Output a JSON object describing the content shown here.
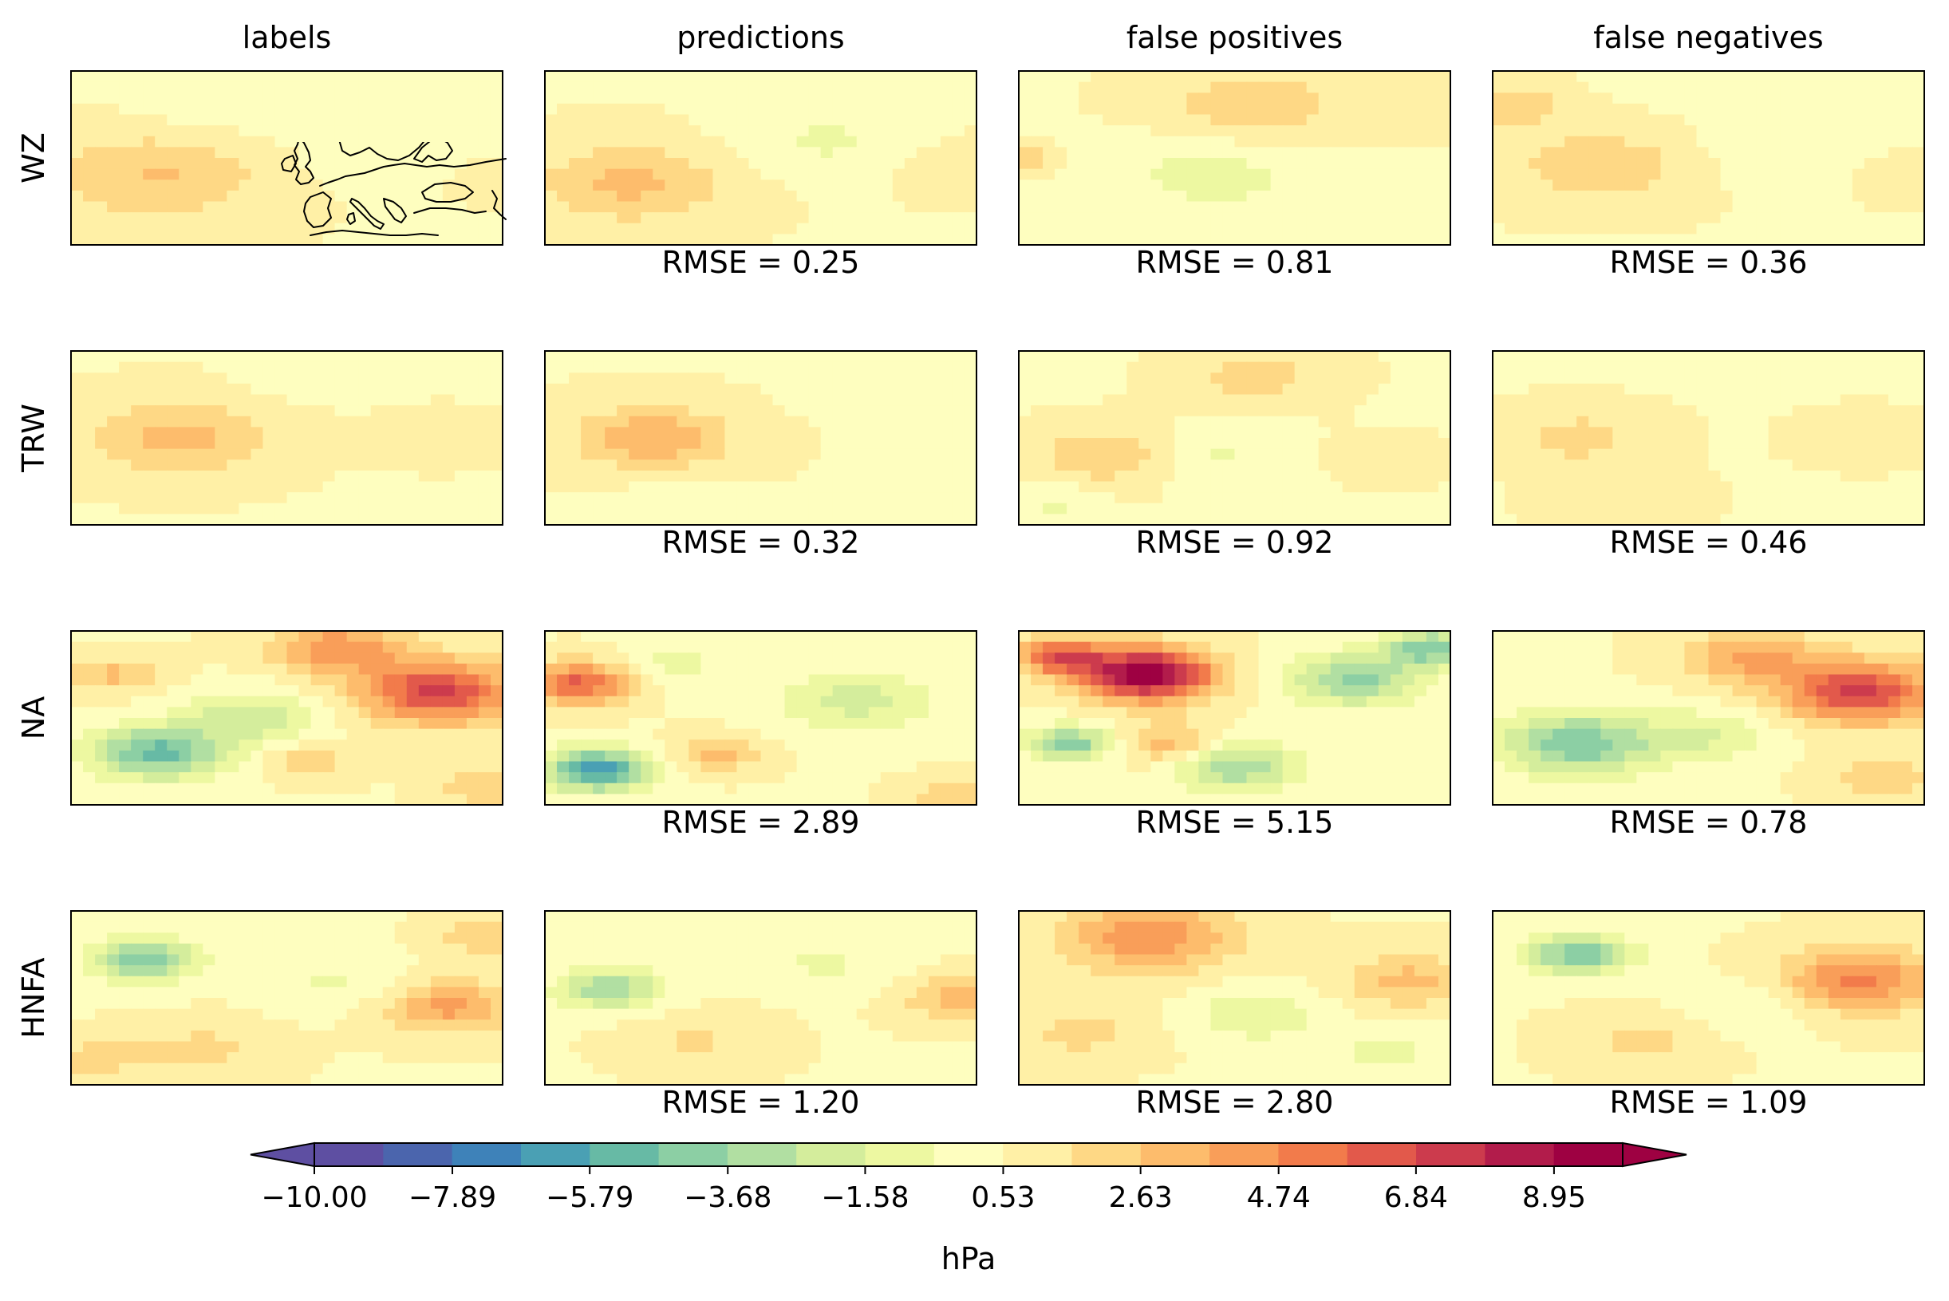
{
  "chart_data": {
    "type": "heatmap",
    "columns": [
      "labels",
      "predictions",
      "false positives",
      "false negatives"
    ],
    "rows": [
      "WZ",
      "TRW",
      "NA",
      "HNFA"
    ],
    "rmse": [
      [
        "",
        "RMSE = 0.25",
        "RMSE = 0.81",
        "RMSE = 0.36"
      ],
      [
        "",
        "RMSE = 0.32",
        "RMSE = 0.92",
        "RMSE = 0.46"
      ],
      [
        "",
        "RMSE = 2.89",
        "RMSE = 5.15",
        "RMSE = 0.78"
      ],
      [
        "",
        "RMSE = 1.20",
        "RMSE = 2.80",
        "RMSE = 1.09"
      ]
    ],
    "colorbar": {
      "label": "hPa",
      "ticks": [
        "−10.00",
        "−7.89",
        "−5.79",
        "−3.68",
        "−1.58",
        "0.53",
        "2.63",
        "4.74",
        "6.84",
        "8.95"
      ],
      "tick_values": [
        -10.0,
        -7.89,
        -5.79,
        -3.68,
        -1.58,
        0.53,
        2.63,
        4.74,
        6.84,
        8.95
      ],
      "levels_min": -10.0,
      "levels_max": 10.0,
      "n_levels": 19,
      "extend": "both",
      "colors": [
        "#5e4fa2",
        "#4b65ad",
        "#3e82b9",
        "#4aa0b4",
        "#67baa5",
        "#8ccfa4",
        "#b1dfa2",
        "#d4ed9c",
        "#edf8a1",
        "#fefebf",
        "#fff0a6",
        "#fed885",
        "#fdbc6c",
        "#f99e59",
        "#f27b4b",
        "#e2594b",
        "#cc3b4d",
        "#b21c4b",
        "#9e0142"
      ],
      "under_color": "#5e4fa2",
      "over_color": "#9e0142"
    },
    "fields": [
      [
        [
          {
            "x": 0.2,
            "y": 0.6,
            "s": 0.25,
            "a": 2.2
          },
          {
            "x": 0.75,
            "y": 0.45,
            "s": 0.2,
            "a": -1.0
          },
          {
            "x": 0.35,
            "y": 0.2,
            "s": 0.2,
            "a": -0.7
          },
          {
            "x": 0.95,
            "y": 0.6,
            "s": 0.12,
            "a": 0.6
          }
        ],
        [
          {
            "x": 0.2,
            "y": 0.65,
            "s": 0.22,
            "a": 2.4
          },
          {
            "x": 0.65,
            "y": 0.4,
            "s": 0.2,
            "a": -1.2
          },
          {
            "x": 0.95,
            "y": 0.55,
            "s": 0.15,
            "a": 0.7
          }
        ],
        [
          {
            "x": 0.55,
            "y": 0.2,
            "s": 0.2,
            "a": 2.0
          },
          {
            "x": 0.03,
            "y": 0.5,
            "s": 0.06,
            "a": 1.8
          },
          {
            "x": 0.45,
            "y": 0.6,
            "s": 0.22,
            "a": -1.5
          },
          {
            "x": 0.8,
            "y": 0.85,
            "s": 0.15,
            "a": -0.8
          },
          {
            "x": 0.95,
            "y": 0.2,
            "s": 0.12,
            "a": 0.8
          }
        ],
        [
          {
            "x": 0.25,
            "y": 0.55,
            "s": 0.2,
            "a": 2.0
          },
          {
            "x": 0.05,
            "y": 0.2,
            "s": 0.12,
            "a": 2.0
          },
          {
            "x": 0.7,
            "y": 0.45,
            "s": 0.2,
            "a": -0.9
          },
          {
            "x": 0.4,
            "y": 0.05,
            "s": 0.12,
            "a": -0.6
          },
          {
            "x": 0.95,
            "y": 0.6,
            "s": 0.12,
            "a": 0.9
          }
        ]
      ],
      [
        [
          {
            "x": 0.25,
            "y": 0.5,
            "s": 0.2,
            "a": 2.6
          },
          {
            "x": 0.55,
            "y": 0.15,
            "s": 0.12,
            "a": -0.6
          },
          {
            "x": 0.85,
            "y": 0.5,
            "s": 0.12,
            "a": 0.8
          }
        ],
        [
          {
            "x": 0.25,
            "y": 0.5,
            "s": 0.18,
            "a": 3.0
          },
          {
            "x": 0.7,
            "y": 0.2,
            "s": 0.12,
            "a": -0.5
          },
          {
            "x": 0.3,
            "y": 0.85,
            "s": 0.12,
            "a": -0.7
          }
        ],
        [
          {
            "x": 0.2,
            "y": 0.6,
            "s": 0.15,
            "a": 2.2
          },
          {
            "x": 0.55,
            "y": 0.15,
            "s": 0.15,
            "a": 1.6
          },
          {
            "x": 0.45,
            "y": 0.6,
            "s": 0.15,
            "a": -1.2
          },
          {
            "x": 0.08,
            "y": 0.88,
            "s": 0.1,
            "a": -1.2
          },
          {
            "x": 0.85,
            "y": 0.6,
            "s": 0.12,
            "a": 0.6
          },
          {
            "x": 0.92,
            "y": 0.35,
            "s": 0.08,
            "a": -0.6
          }
        ],
        [
          {
            "x": 0.2,
            "y": 0.5,
            "s": 0.15,
            "a": 1.6
          },
          {
            "x": 0.3,
            "y": 0.85,
            "s": 0.15,
            "a": 0.6
          },
          {
            "x": 0.85,
            "y": 0.5,
            "s": 0.12,
            "a": 0.9
          }
        ]
      ],
      [
        [
          {
            "x": 0.2,
            "y": 0.7,
            "s": 0.15,
            "a": -5.6
          },
          {
            "x": 0.42,
            "y": 0.5,
            "s": 0.15,
            "a": -3.0
          },
          {
            "x": 0.85,
            "y": 0.35,
            "s": 0.18,
            "a": 6.5
          },
          {
            "x": 0.62,
            "y": 0.1,
            "s": 0.15,
            "a": 4.0
          },
          {
            "x": 0.1,
            "y": 0.25,
            "s": 0.1,
            "a": 2.5
          },
          {
            "x": 0.55,
            "y": 0.75,
            "s": 0.1,
            "a": 1.8
          },
          {
            "x": 0.95,
            "y": 0.9,
            "s": 0.1,
            "a": 2.0
          }
        ],
        [
          {
            "x": 0.12,
            "y": 0.8,
            "s": 0.12,
            "a": -7.0
          },
          {
            "x": 0.08,
            "y": 0.3,
            "s": 0.12,
            "a": 5.5
          },
          {
            "x": 0.72,
            "y": 0.4,
            "s": 0.18,
            "a": -2.5
          },
          {
            "x": 0.4,
            "y": 0.7,
            "s": 0.1,
            "a": 2.5
          },
          {
            "x": 0.3,
            "y": 0.2,
            "s": 0.12,
            "a": -1.5
          },
          {
            "x": 0.95,
            "y": 0.95,
            "s": 0.1,
            "a": 2.0
          }
        ],
        [
          {
            "x": 0.3,
            "y": 0.25,
            "s": 0.15,
            "a": 9.5
          },
          {
            "x": 0.1,
            "y": 0.15,
            "s": 0.1,
            "a": 6.0
          },
          {
            "x": 0.78,
            "y": 0.28,
            "s": 0.15,
            "a": -4.5
          },
          {
            "x": 0.95,
            "y": 0.1,
            "s": 0.1,
            "a": -5.0
          },
          {
            "x": 0.12,
            "y": 0.65,
            "s": 0.1,
            "a": -5.0
          },
          {
            "x": 0.5,
            "y": 0.78,
            "s": 0.15,
            "a": -4.0
          },
          {
            "x": 0.35,
            "y": 0.65,
            "s": 0.12,
            "a": 3.0
          }
        ],
        [
          {
            "x": 0.2,
            "y": 0.65,
            "s": 0.18,
            "a": -5.0
          },
          {
            "x": 0.85,
            "y": 0.35,
            "s": 0.18,
            "a": 6.5
          },
          {
            "x": 0.6,
            "y": 0.15,
            "s": 0.15,
            "a": 3.5
          },
          {
            "x": 0.5,
            "y": 0.6,
            "s": 0.15,
            "a": -2.0
          },
          {
            "x": 0.9,
            "y": 0.85,
            "s": 0.12,
            "a": 2.0
          }
        ]
      ],
      [
        [
          {
            "x": 0.17,
            "y": 0.28,
            "s": 0.12,
            "a": -5.0
          },
          {
            "x": 0.88,
            "y": 0.55,
            "s": 0.15,
            "a": 3.5
          },
          {
            "x": 0.62,
            "y": 0.4,
            "s": 0.15,
            "a": -1.2
          },
          {
            "x": 0.3,
            "y": 0.8,
            "s": 0.15,
            "a": 1.5
          },
          {
            "x": 0.05,
            "y": 0.85,
            "s": 0.12,
            "a": 1.5
          },
          {
            "x": 0.95,
            "y": 0.15,
            "s": 0.1,
            "a": 2.0
          }
        ],
        [
          {
            "x": 0.15,
            "y": 0.45,
            "s": 0.12,
            "a": -4.0
          },
          {
            "x": 0.65,
            "y": 0.3,
            "s": 0.15,
            "a": -1.2
          },
          {
            "x": 0.95,
            "y": 0.5,
            "s": 0.12,
            "a": 2.5
          },
          {
            "x": 0.35,
            "y": 0.75,
            "s": 0.15,
            "a": 1.2
          }
        ],
        [
          {
            "x": 0.3,
            "y": 0.15,
            "s": 0.2,
            "a": 4.0
          },
          {
            "x": 0.55,
            "y": 0.6,
            "s": 0.15,
            "a": -2.0
          },
          {
            "x": 0.85,
            "y": 0.8,
            "s": 0.12,
            "a": -1.5
          },
          {
            "x": 0.9,
            "y": 0.4,
            "s": 0.15,
            "a": 2.5
          },
          {
            "x": 0.15,
            "y": 0.7,
            "s": 0.15,
            "a": 1.5
          }
        ],
        [
          {
            "x": 0.2,
            "y": 0.25,
            "s": 0.12,
            "a": -5.0
          },
          {
            "x": 0.85,
            "y": 0.4,
            "s": 0.18,
            "a": 4.5
          },
          {
            "x": 0.6,
            "y": 0.55,
            "s": 0.15,
            "a": -1.2
          },
          {
            "x": 0.35,
            "y": 0.75,
            "s": 0.15,
            "a": 1.5
          }
        ]
      ]
    ]
  }
}
